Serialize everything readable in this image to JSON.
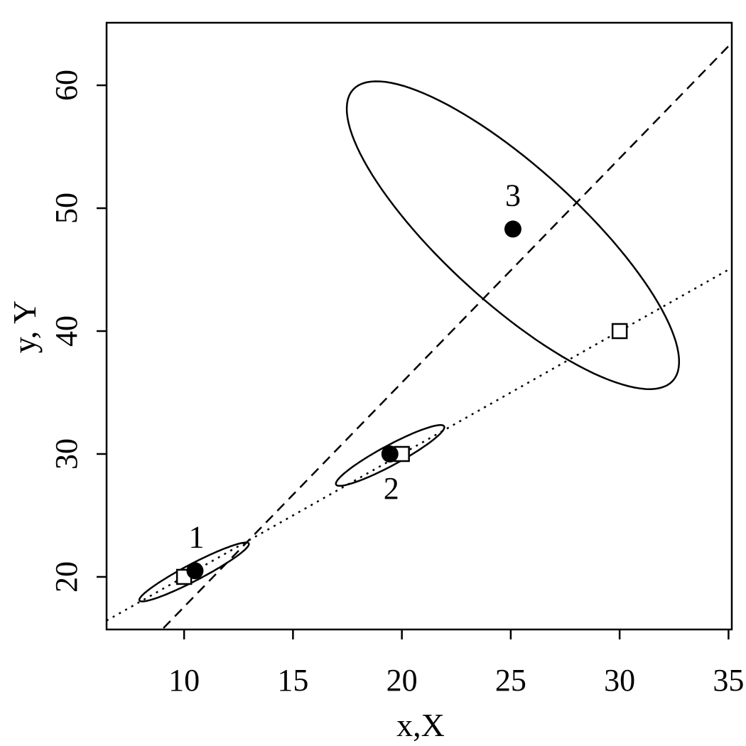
{
  "chart_data": {
    "type": "scatter",
    "title": "",
    "xlabel": "x,X",
    "ylabel": "y, Y",
    "xlim": [
      6.44,
      35.15
    ],
    "ylim": [
      15.72,
      65.09
    ],
    "x_ticks": [
      10,
      15,
      20,
      25,
      30,
      35
    ],
    "y_ticks": [
      20,
      30,
      40,
      50,
      60
    ],
    "grid": false,
    "filled_points": [
      {
        "label": "1",
        "x": 10.5,
        "y": 20.5
      },
      {
        "label": "2",
        "x": 19.45,
        "y": 30.0
      },
      {
        "label": "3",
        "x": 25.1,
        "y": 48.3
      }
    ],
    "open_squares": [
      {
        "x": 10,
        "y": 20
      },
      {
        "x": 20,
        "y": 30
      },
      {
        "x": 30,
        "y": 40
      }
    ],
    "lines": [
      {
        "style": "dotted",
        "intercept": 10.0,
        "slope": 1.0
      },
      {
        "style": "dashed",
        "intercept": -0.69,
        "slope": 1.825
      }
    ],
    "ellipses": [
      {
        "center": [
          10.46,
          20.4
        ],
        "axis1": [
          2.51,
          2.32
        ],
        "axis2": [
          0.18,
          -0.61
        ]
      },
      {
        "center": [
          19.46,
          29.88
        ],
        "axis1": [
          2.48,
          2.37
        ],
        "axis2": [
          0.22,
          -0.71
        ]
      },
      {
        "center": [
          25.1,
          47.8
        ],
        "axis1": [
          7.34,
          -11.85
        ],
        "axis2": [
          2.09,
          4.05
        ]
      }
    ]
  }
}
